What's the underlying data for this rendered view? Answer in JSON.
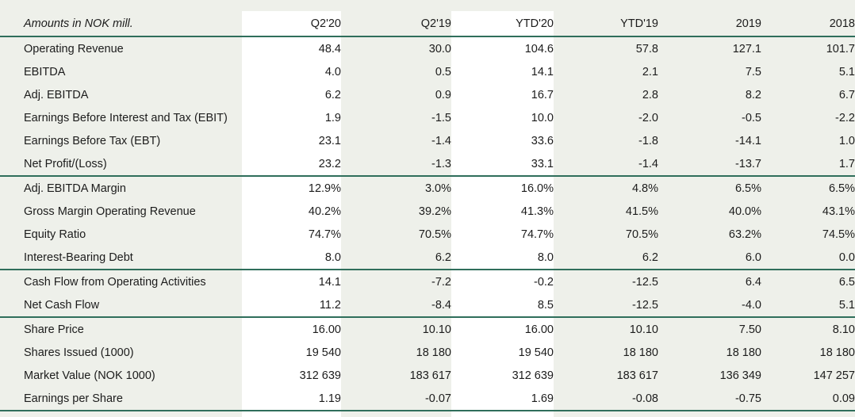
{
  "table": {
    "header": {
      "label": "Amounts in NOK mill.",
      "columns": [
        "Q2'20",
        "Q2'19",
        "YTD'20",
        "YTD'19",
        "2019",
        "2018"
      ]
    },
    "groups": [
      {
        "rows": [
          {
            "label": "Operating Revenue",
            "values": [
              "48.4",
              "30.0",
              "104.6",
              "57.8",
              "127.1",
              "101.7"
            ]
          },
          {
            "label": "EBITDA",
            "values": [
              "4.0",
              "0.5",
              "14.1",
              "2.1",
              "7.5",
              "5.1"
            ]
          },
          {
            "label": "Adj. EBITDA",
            "values": [
              "6.2",
              "0.9",
              "16.7",
              "2.8",
              "8.2",
              "6.7"
            ]
          },
          {
            "label": "Earnings Before Interest and Tax (EBIT)",
            "values": [
              "1.9",
              "-1.5",
              "10.0",
              "-2.0",
              "-0.5",
              "-2.2"
            ]
          },
          {
            "label": "Earnings Before Tax (EBT)",
            "values": [
              "23.1",
              "-1.4",
              "33.6",
              "-1.8",
              "-14.1",
              "1.0"
            ]
          },
          {
            "label": "Net Profit/(Loss)",
            "values": [
              "23.2",
              "-1.3",
              "33.1",
              "-1.4",
              "-13.7",
              "1.7"
            ]
          }
        ]
      },
      {
        "rows": [
          {
            "label": "Adj. EBITDA Margin",
            "values": [
              "12.9%",
              "3.0%",
              "16.0%",
              "4.8%",
              "6.5%",
              "6.5%"
            ]
          },
          {
            "label": "Gross Margin Operating Revenue",
            "values": [
              "40.2%",
              "39.2%",
              "41.3%",
              "41.5%",
              "40.0%",
              "43.1%"
            ]
          },
          {
            "label": "Equity Ratio",
            "values": [
              "74.7%",
              "70.5%",
              "74.7%",
              "70.5%",
              "63.2%",
              "74.5%"
            ]
          },
          {
            "label": "Interest-Bearing Debt",
            "values": [
              "8.0",
              "6.2",
              "8.0",
              "6.2",
              "6.0",
              "0.0"
            ]
          }
        ]
      },
      {
        "rows": [
          {
            "label": "Cash Flow from Operating Activities",
            "values": [
              "14.1",
              "-7.2",
              "-0.2",
              "-12.5",
              "6.4",
              "6.5"
            ]
          },
          {
            "label": "Net Cash Flow",
            "values": [
              "11.2",
              "-8.4",
              "8.5",
              "-12.5",
              "-4.0",
              "5.1"
            ]
          }
        ]
      },
      {
        "rows": [
          {
            "label": "Share Price",
            "values": [
              "16.00",
              "10.10",
              "16.00",
              "10.10",
              "7.50",
              "8.10"
            ]
          },
          {
            "label": "Shares Issued (1000)",
            "values": [
              "19 540",
              "18 180",
              "19 540",
              "18 180",
              "18 180",
              "18 180"
            ]
          },
          {
            "label": "Market Value (NOK 1000)",
            "values": [
              "312 639",
              "183 617",
              "312 639",
              "183 617",
              "136 349",
              "147 257"
            ]
          },
          {
            "label": "Earnings per Share",
            "values": [
              "1.19",
              "-0.07",
              "1.69",
              "-0.08",
              "-0.75",
              "0.09"
            ]
          }
        ]
      }
    ]
  }
}
